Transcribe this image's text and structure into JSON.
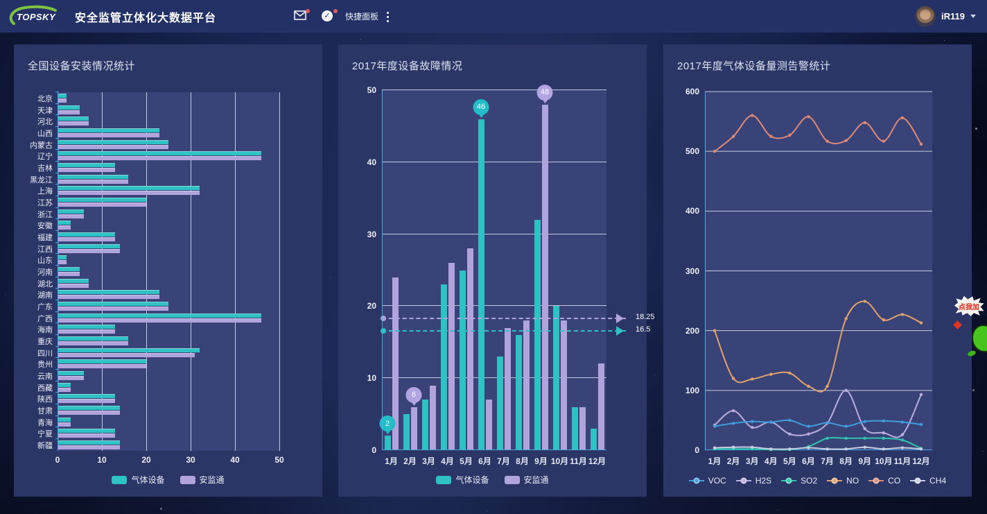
{
  "header": {
    "logo_text": "TOPSKY",
    "title": "安全监管立体化大数据平台",
    "quick_panel_label": "快捷面板",
    "username": "iR119",
    "check_glyph": "✓"
  },
  "mascot": {
    "bubble_text": "点我加"
  },
  "colors": {
    "header_bg": "#233166",
    "panel_bg": "#2b3566",
    "plot_bg": "#3a4378",
    "axis_accent": "#4ba7e8",
    "grid_line": "#e0e5f2",
    "series_teal": "#2fc2c4",
    "series_purple": "#b1a4dc",
    "notification_dot": "#e05a5a",
    "logo_green": "#7dc242"
  },
  "chart_data": [
    {
      "type": "bar",
      "orientation": "horizontal",
      "title": "全国设备安装情况统计",
      "categories": [
        "北京",
        "天津",
        "河北",
        "山西",
        "内蒙古",
        "辽宁",
        "吉林",
        "黑龙江",
        "上海",
        "江苏",
        "浙江",
        "安徽",
        "福建",
        "江西",
        "山东",
        "河南",
        "湖北",
        "湖南",
        "广东",
        "广西",
        "海南",
        "重庆",
        "四川",
        "贵州",
        "云南",
        "西藏",
        "陕西",
        "甘肃",
        "青海",
        "宁夏",
        "新疆"
      ],
      "series": [
        {
          "name": "气体设备",
          "color": "#2fc2c4",
          "values": [
            2,
            5,
            7,
            23,
            25,
            46,
            13,
            16,
            32,
            20,
            6,
            3,
            13,
            14,
            2,
            5,
            7,
            23,
            25,
            46,
            13,
            16,
            32,
            20,
            6,
            3,
            13,
            14,
            3,
            13,
            14
          ]
        },
        {
          "name": "安监通",
          "color": "#b1a4dc",
          "values": [
            2,
            5,
            7,
            23,
            25,
            46,
            13,
            16,
            32,
            20,
            6,
            3,
            13,
            14,
            2,
            5,
            7,
            23,
            25,
            46,
            13,
            16,
            31,
            20,
            6,
            3,
            13,
            14,
            3,
            13,
            14
          ]
        }
      ],
      "xlim": [
        0,
        50
      ],
      "x_ticks": [
        0,
        10,
        20,
        30,
        40,
        50
      ],
      "grid": true,
      "legend_position": "bottom"
    },
    {
      "type": "bar",
      "orientation": "vertical",
      "title": "2017年度设备故障情况",
      "categories": [
        "1月",
        "2月",
        "3月",
        "4月",
        "5月",
        "6月",
        "7月",
        "8月",
        "9月",
        "10月",
        "11月",
        "12月"
      ],
      "series": [
        {
          "name": "气体设备",
          "color": "#2fc2c4",
          "values": [
            2,
            5,
            7,
            23,
            25,
            46,
            13,
            16,
            32,
            20,
            6,
            3
          ]
        },
        {
          "name": "安监通",
          "color": "#b1a4dc",
          "values": [
            24,
            6,
            9,
            26,
            28,
            7,
            17,
            18,
            48,
            18,
            6,
            12
          ]
        }
      ],
      "ylim": [
        0,
        50
      ],
      "y_ticks": [
        0,
        10,
        20,
        30,
        40,
        50
      ],
      "grid": true,
      "legend_position": "bottom",
      "point_labels": [
        {
          "series": "气体设备",
          "series_index": 0,
          "category": "1月",
          "index": 0,
          "value": 2,
          "kind": "min"
        },
        {
          "series": "安监通",
          "series_index": 1,
          "category": "2月",
          "index": 1,
          "value": 6,
          "kind": "min"
        },
        {
          "series": "气体设备",
          "series_index": 0,
          "category": "6月",
          "index": 5,
          "value": 46,
          "kind": "max"
        },
        {
          "series": "安监通",
          "series_index": 1,
          "category": "9月",
          "index": 8,
          "value": 48,
          "kind": "max"
        }
      ],
      "average_lines": [
        {
          "series": "安监通",
          "series_index": 1,
          "value": 18.25,
          "label": "18.25"
        },
        {
          "series": "气体设备",
          "series_index": 0,
          "value": 16.5,
          "label": "16.5"
        }
      ]
    },
    {
      "type": "line",
      "title": "2017年度气体设备量测告警统计",
      "x": [
        "1月",
        "2月",
        "3月",
        "4月",
        "5月",
        "6月",
        "7月",
        "8月",
        "9月",
        "10月",
        "11月",
        "12月"
      ],
      "series": [
        {
          "name": "CO",
          "color": "#dd8b76",
          "values": [
            500,
            525,
            560,
            525,
            527,
            558,
            517,
            518,
            548,
            517,
            556,
            512
          ]
        },
        {
          "name": "NO",
          "color": "#e2a36b",
          "values": [
            200,
            120,
            119,
            127,
            129,
            107,
            107,
            220,
            249,
            218,
            227,
            213
          ]
        },
        {
          "name": "H2S",
          "color": "#b9aede",
          "values": [
            42,
            66,
            38,
            47,
            27,
            27,
            45,
            100,
            36,
            29,
            26,
            93
          ]
        },
        {
          "name": "VOC",
          "color": "#3f9edb",
          "values": [
            40,
            45,
            48,
            47,
            50,
            40,
            46,
            40,
            48,
            49,
            47,
            43
          ]
        },
        {
          "name": "SO2",
          "color": "#2dc5ae",
          "values": [
            2,
            2,
            2,
            1,
            1,
            6,
            20,
            20,
            20,
            20,
            17,
            3
          ]
        },
        {
          "name": "CH4",
          "color": "#c9cfe2",
          "values": [
            4,
            5,
            5,
            2,
            2,
            4,
            2,
            2,
            5,
            2,
            4,
            2
          ]
        }
      ],
      "legend_order": [
        "VOC",
        "H2S",
        "SO2",
        "NO",
        "CO",
        "CH4"
      ],
      "ylim": [
        0,
        600
      ],
      "y_ticks": [
        0,
        100,
        200,
        300,
        400,
        500,
        600
      ],
      "grid": true,
      "smooth": true,
      "legend_position": "bottom"
    }
  ]
}
